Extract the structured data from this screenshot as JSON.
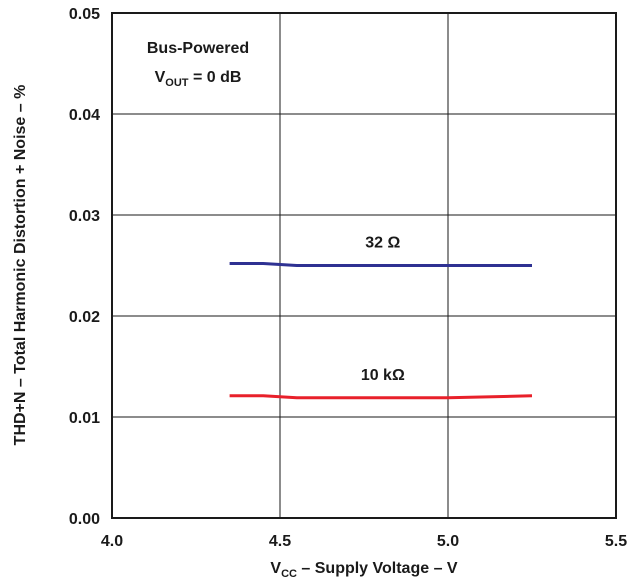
{
  "chart_data": {
    "type": "line",
    "xlabel": {
      "main": "V",
      "sub": "CC",
      "rest": " – Supply Voltage – V"
    },
    "ylabel": "THD+N – Total Harmonic Distortion + Noise – %",
    "xlim": [
      4.0,
      5.5
    ],
    "ylim": [
      0.0,
      0.05
    ],
    "x_ticks": [
      "4.0",
      "4.5",
      "5.0",
      "5.5"
    ],
    "y_ticks": [
      "0.00",
      "0.01",
      "0.02",
      "0.03",
      "0.04",
      "0.05"
    ],
    "grid": true,
    "annotation": {
      "line1": "Bus-Powered",
      "line2_main": "V",
      "line2_sub": "OUT",
      "line2_rest": " = 0 dB"
    },
    "series": [
      {
        "name": "32 Ω",
        "color": "#2e3192",
        "x": [
          4.35,
          4.45,
          4.55,
          4.75,
          5.0,
          5.25
        ],
        "y": [
          0.0252,
          0.0252,
          0.025,
          0.025,
          0.025,
          0.025
        ]
      },
      {
        "name": "10 kΩ",
        "color": "#e8202a",
        "x": [
          4.35,
          4.45,
          4.55,
          4.75,
          5.0,
          5.25
        ],
        "y": [
          0.0121,
          0.0121,
          0.0119,
          0.0119,
          0.0119,
          0.0121
        ]
      }
    ]
  }
}
